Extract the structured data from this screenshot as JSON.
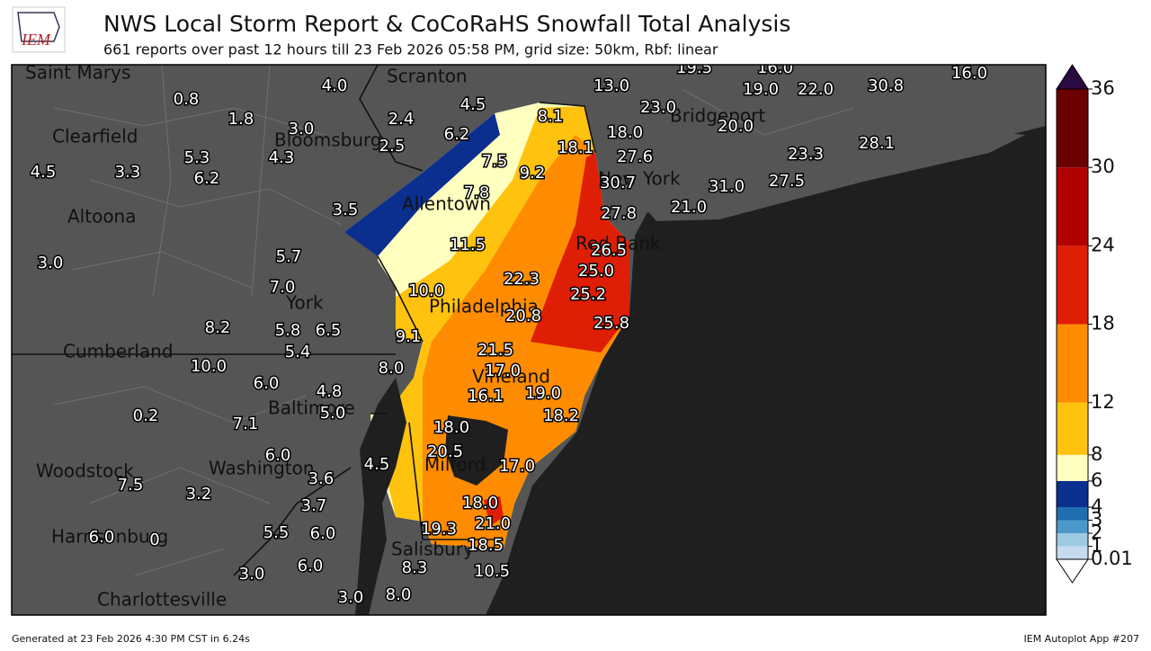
{
  "header": {
    "logo": "IEM",
    "title": "NWS Local Storm Report & CoCoRaHS Snowfall Total Analysis",
    "subtitle": "661 reports over past 12 hours till 23 Feb 2026 05:58 PM, grid size: 50km, Rbf: linear"
  },
  "places": [
    "Saint Marys",
    "Scranton",
    "Clearfield",
    "Bloomsburg",
    "Allentown",
    "Altoona",
    "Bridgeport",
    "New York",
    "Red Bank",
    "York",
    "Philadelphia",
    "Cumberland",
    "Vineland",
    "Baltimore",
    "Woodstock",
    "Washington",
    "Milford",
    "Harrisonburg",
    "Salisbury",
    "Charlottesville"
  ],
  "reports": [
    "4.0",
    "0.8",
    "1.8",
    "3.0",
    "2.4",
    "4.5",
    "6.2",
    "2.5",
    "8.1",
    "13.0",
    "19.5",
    "16.0",
    "19.0",
    "22.0",
    "30.8",
    "16.0",
    "23.0",
    "18.0",
    "20.0",
    "18.1",
    "27.6",
    "23.3",
    "28.1",
    "5.3",
    "4.3",
    "7.5",
    "9.2",
    "4.5",
    "3.3",
    "6.2",
    "30.7",
    "31.0",
    "27.5",
    "7.8",
    "27.8",
    "21.0",
    "3.5",
    "11.5",
    "26.5",
    "3.0",
    "5.7",
    "25.0",
    "7.0",
    "22.3",
    "10.0",
    "25.2",
    "8.2",
    "5.8",
    "6.5",
    "20.8",
    "25.8",
    "9.1",
    "5.4",
    "21.5",
    "10.0",
    "8.0",
    "17.0",
    "6.0",
    "4.8",
    "19.0",
    "16.1",
    "0.2",
    "5.0",
    "7.1",
    "18.2",
    "18.0",
    "6.0",
    "20.5",
    "4.5",
    "17.0",
    "3.6",
    "7.5",
    "3.2",
    "18.0",
    "3.7",
    "21.0",
    "19.3",
    "5.5",
    "6.0",
    "6.0",
    "0",
    "18.5",
    "8.3",
    "10.5",
    "6.0",
    "3.0",
    "3.0",
    "8.0"
  ],
  "colorbar": {
    "lim": [
      0.01,
      36
    ],
    "ticks": [
      0.01,
      1,
      2,
      3,
      4,
      6,
      8,
      12,
      18,
      24,
      30,
      36
    ],
    "colors": [
      "#c6dbef",
      "#9ecae1",
      "#4a98c9",
      "#1f6eb0",
      "#0a2f8f",
      "#ffffbf",
      "#ffc20e",
      "#ff8c00",
      "#de1e05",
      "#b00000",
      "#6b0000"
    ],
    "over_color": "#2a0a40",
    "under_color": "#ffffff"
  },
  "footer": {
    "left": "Generated at 23 Feb 2026 4:30 PM CST in 6.24s",
    "right": "IEM Autoplot App #207"
  }
}
